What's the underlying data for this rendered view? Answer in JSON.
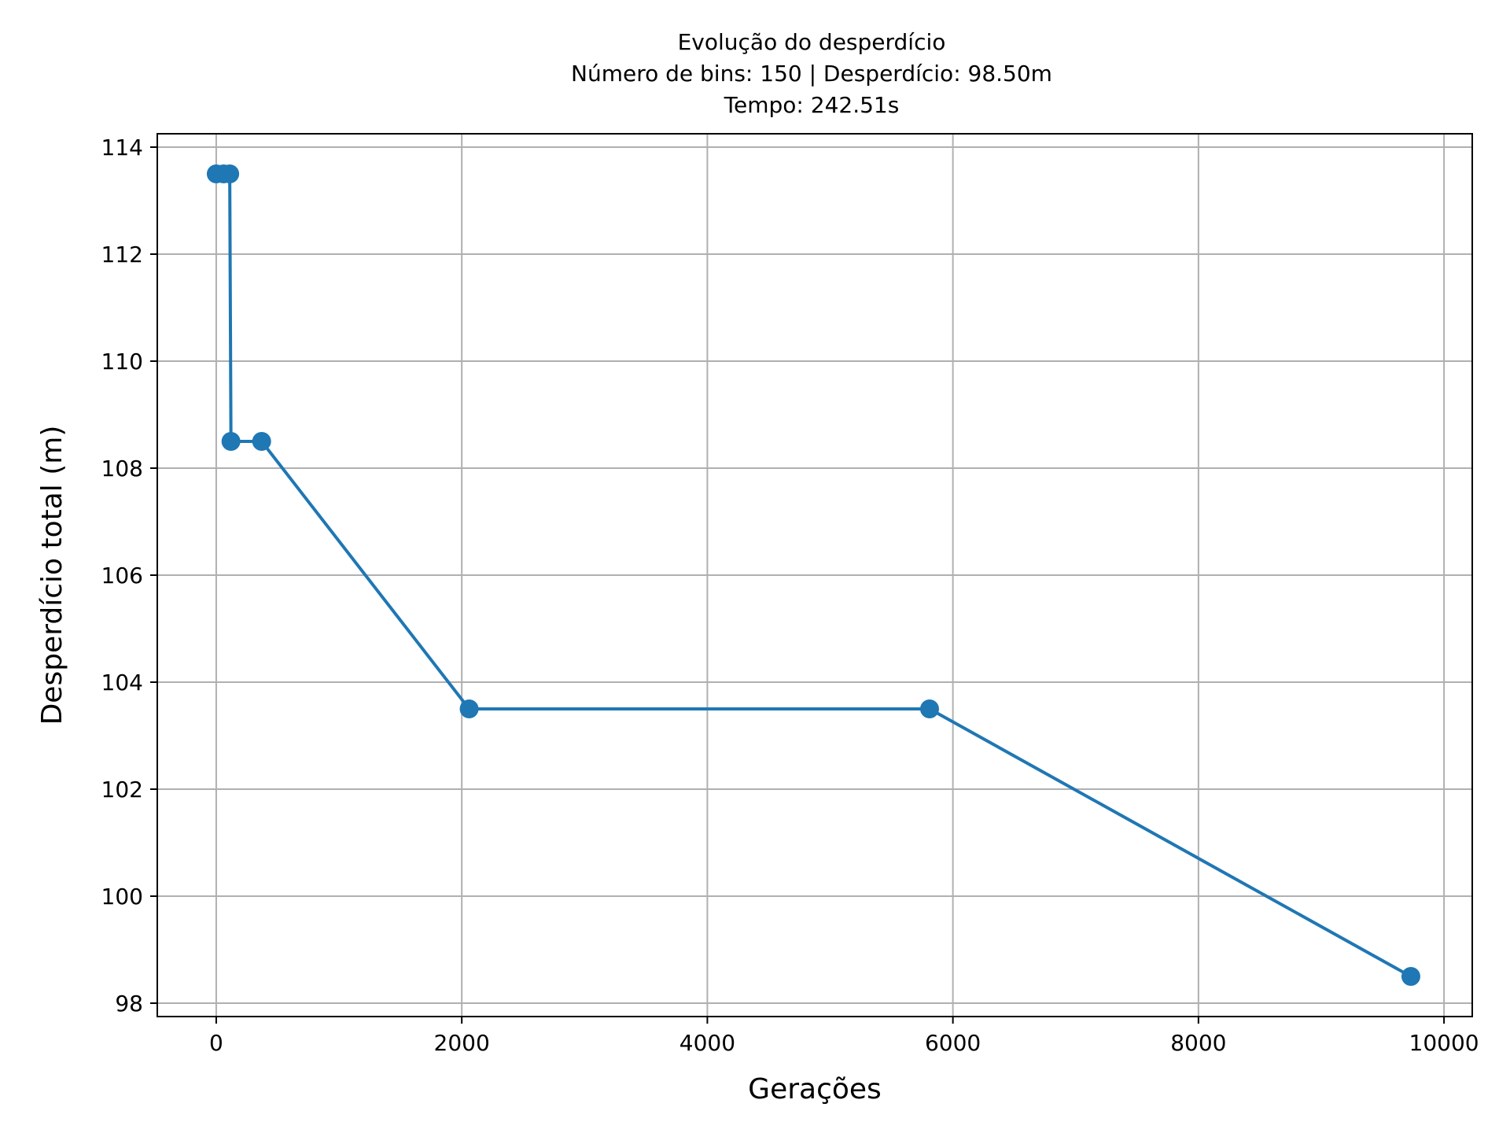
{
  "chart_data": {
    "type": "line",
    "title": "Evolução do desperdício",
    "subtitle": [
      "Número de bins: 150 | Desperdício: 98.50m",
      "Tempo: 242.51s"
    ],
    "xlabel": "Gerações",
    "ylabel": "Desperdício total (m)",
    "xlim": [
      -480,
      10230
    ],
    "ylim": [
      97.75,
      114.25
    ],
    "xticks": [
      0,
      2000,
      4000,
      6000,
      8000,
      10000
    ],
    "yticks": [
      98,
      100,
      102,
      104,
      106,
      108,
      110,
      112,
      114
    ],
    "grid": true,
    "line_color": "#1f77b4",
    "grid_color": "#b0b0b0",
    "series": [
      {
        "x": [
          0,
          60,
          110,
          120,
          370,
          2060,
          5810,
          9730
        ],
        "y": [
          113.5,
          113.5,
          113.5,
          108.5,
          108.5,
          103.5,
          103.5,
          98.5
        ]
      }
    ]
  }
}
